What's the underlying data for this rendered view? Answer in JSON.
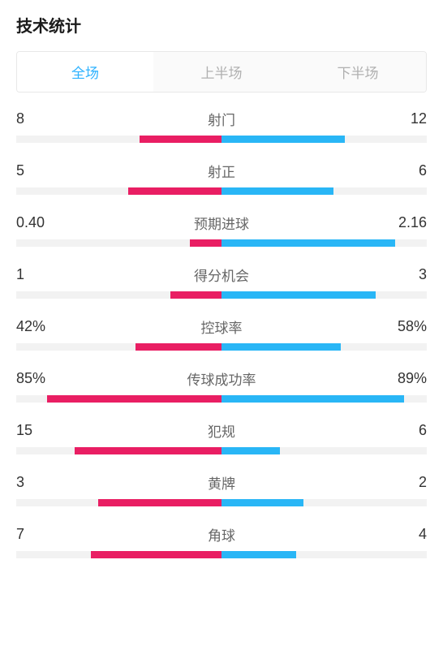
{
  "title": "技术统计",
  "tabs": [
    {
      "label": "全场",
      "active": true
    },
    {
      "label": "上半场",
      "active": false
    },
    {
      "label": "下半场",
      "active": false
    }
  ],
  "colors": {
    "left": "#e91e63",
    "right": "#29b6f6",
    "bg": "#f2f2f2"
  },
  "stats": [
    {
      "label": "射门",
      "left_value": "8",
      "right_value": "12",
      "left_pct": 40,
      "right_pct": 60
    },
    {
      "label": "射正",
      "left_value": "5",
      "right_value": "6",
      "left_pct": 45.5,
      "right_pct": 54.5
    },
    {
      "label": "预期进球",
      "left_value": "0.40",
      "right_value": "2.16",
      "left_pct": 15.6,
      "right_pct": 84.4
    },
    {
      "label": "得分机会",
      "left_value": "1",
      "right_value": "3",
      "left_pct": 25,
      "right_pct": 75
    },
    {
      "label": "控球率",
      "left_value": "42%",
      "right_value": "58%",
      "left_pct": 42,
      "right_pct": 58
    },
    {
      "label": "传球成功率",
      "left_value": "85%",
      "right_value": "89%",
      "left_pct": 85,
      "right_pct": 89
    },
    {
      "label": "犯规",
      "left_value": "15",
      "right_value": "6",
      "left_pct": 71.4,
      "right_pct": 28.6
    },
    {
      "label": "黄牌",
      "left_value": "3",
      "right_value": "2",
      "left_pct": 60,
      "right_pct": 40
    },
    {
      "label": "角球",
      "left_value": "7",
      "right_value": "4",
      "left_pct": 63.6,
      "right_pct": 36.4
    }
  ]
}
